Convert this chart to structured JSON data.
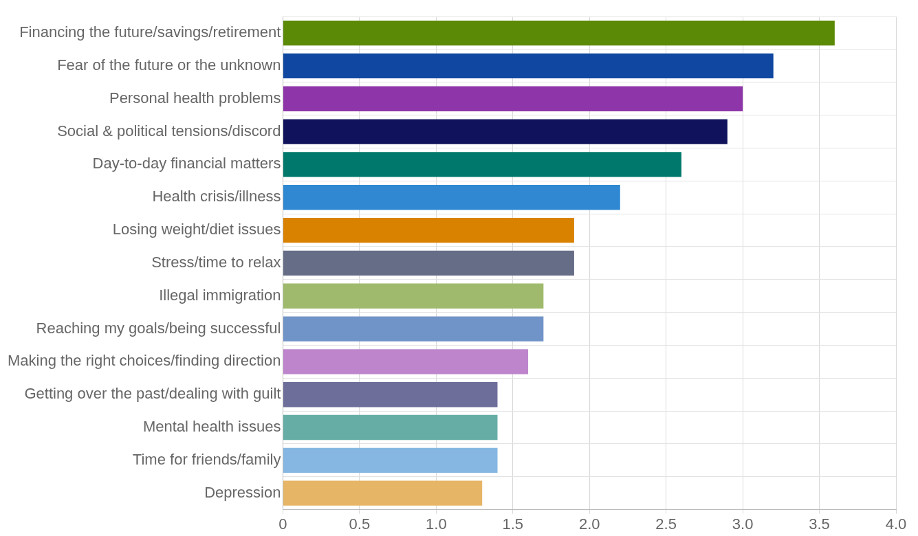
{
  "chart_data": {
    "type": "bar",
    "orientation": "horizontal",
    "categories": [
      "Financing the future/savings/retirement",
      "Fear of the future or the unknown",
      "Personal health problems",
      "Social & political tensions/discord",
      "Day-to-day financial matters",
      "Health crisis/illness",
      "Losing weight/diet issues",
      "Stress/time to relax",
      "Illegal immigration",
      "Reaching my goals/being successful",
      "Making the right choices/finding direction",
      "Getting over the past/dealing with guilt",
      "Mental health issues",
      "Time for friends/family",
      "Depression"
    ],
    "values": [
      3.6,
      3.2,
      3.0,
      2.9,
      2.6,
      2.2,
      1.9,
      1.9,
      1.7,
      1.7,
      1.6,
      1.4,
      1.4,
      1.4,
      1.3
    ],
    "colors": [
      "#5b8a06",
      "#0f47a1",
      "#8e35a9",
      "#10125c",
      "#00786b",
      "#2f88d1",
      "#d98200",
      "#666d87",
      "#9fba6c",
      "#7093c8",
      "#be85cc",
      "#6e6e9b",
      "#66ada5",
      "#85b7e2",
      "#e6b566"
    ],
    "xlim": [
      0,
      4.0
    ],
    "xticks": [
      0,
      {
        "value": 0.5,
        "label": "0.5"
      },
      {
        "value": 1,
        "label": "1.0"
      },
      {
        "value": 1.5,
        "label": "1.5"
      },
      {
        "value": 2,
        "label": "2.0"
      },
      {
        "value": 2.5,
        "label": "2.5"
      },
      {
        "value": 3,
        "label": "3.0"
      },
      {
        "value": 3.5,
        "label": "3.5"
      },
      {
        "value": 4,
        "label": "4.0"
      }
    ],
    "grid": true,
    "legend": false
  }
}
